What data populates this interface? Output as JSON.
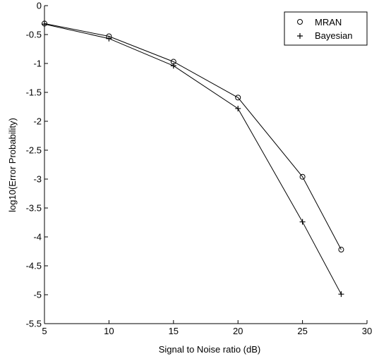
{
  "chart_data": {
    "type": "line",
    "title": "",
    "xlabel": "Signal to Noise ratio (dB)",
    "ylabel": "log10(Error Probability)",
    "xlim": [
      5,
      30
    ],
    "ylim": [
      -5.5,
      0
    ],
    "xticks": [
      5,
      10,
      15,
      20,
      25,
      30
    ],
    "yticks": [
      0,
      -0.5,
      -1,
      -1.5,
      -2,
      -2.5,
      -3,
      -3.5,
      -4,
      -4.5,
      -5,
      -5.5
    ],
    "grid": false,
    "legend_position": "top-right",
    "series": [
      {
        "name": "MRAN",
        "marker": "circle",
        "color": "#000000",
        "x": [
          5,
          10,
          15,
          20,
          25,
          28
        ],
        "y": [
          -0.31,
          -0.53,
          -0.97,
          -1.59,
          -2.96,
          -4.22
        ]
      },
      {
        "name": "Bayesian",
        "marker": "plus",
        "color": "#000000",
        "x": [
          5,
          10,
          15,
          20,
          25,
          28
        ],
        "y": [
          -0.32,
          -0.57,
          -1.04,
          -1.78,
          -3.74,
          -4.99
        ]
      }
    ]
  }
}
